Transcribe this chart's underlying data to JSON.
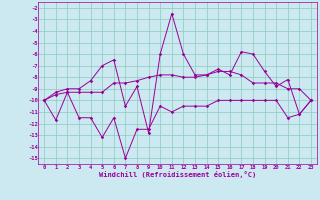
{
  "xlabel": "Windchill (Refroidissement éolien,°C)",
  "background_color": "#cce8f0",
  "grid_color": "#88ccbb",
  "line_color": "#990099",
  "xlim": [
    -0.5,
    23.5
  ],
  "ylim": [
    -15.5,
    -1.5
  ],
  "yticks": [
    -2,
    -3,
    -4,
    -5,
    -6,
    -7,
    -8,
    -9,
    -10,
    -11,
    -12,
    -13,
    -14,
    -15
  ],
  "xticks": [
    0,
    1,
    2,
    3,
    4,
    5,
    6,
    7,
    8,
    9,
    10,
    11,
    12,
    13,
    14,
    15,
    16,
    17,
    18,
    19,
    20,
    21,
    22,
    23
  ],
  "series1_y": [
    -10,
    -11.7,
    -9.3,
    -11.5,
    -11.5,
    -13.2,
    -11.5,
    -15.0,
    -12.5,
    -12.5,
    -10.5,
    -11.0,
    -10.5,
    -10.5,
    -10.5,
    -10.0,
    -10.0,
    -10.0,
    -10.0,
    -10.0,
    -10.0,
    -11.5,
    -11.2,
    -10.0
  ],
  "series2_y": [
    -10,
    -9.5,
    -9.3,
    -9.3,
    -9.3,
    -9.3,
    -8.5,
    -8.5,
    -8.3,
    -8.0,
    -7.8,
    -7.8,
    -8.0,
    -8.0,
    -7.8,
    -7.5,
    -7.5,
    -7.8,
    -8.5,
    -8.5,
    -8.5,
    -9.0,
    -9.0,
    -10.0
  ],
  "series3_y": [
    -10,
    -9.3,
    -9.0,
    -9.0,
    -8.3,
    -7.0,
    -6.5,
    -10.5,
    -8.8,
    -12.8,
    -6.0,
    -2.5,
    -6.0,
    -7.8,
    -7.8,
    -7.3,
    -7.8,
    -5.8,
    -6.0,
    -7.5,
    -8.8,
    -8.2,
    -11.2,
    -10.0
  ]
}
